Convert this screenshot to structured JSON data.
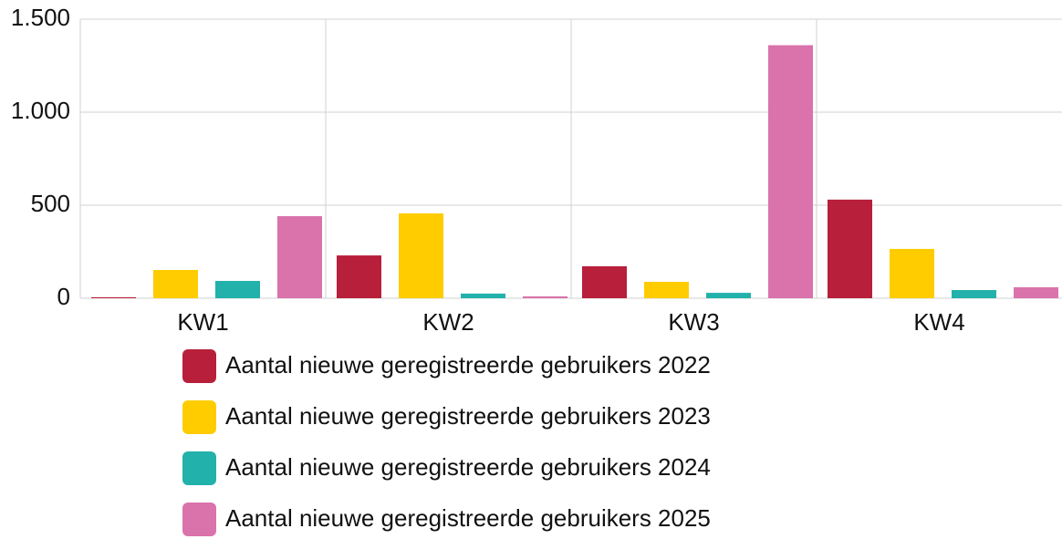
{
  "chart_data": {
    "type": "bar",
    "categories": [
      "KW1",
      "KW2",
      "KW3",
      "KW4"
    ],
    "series": [
      {
        "name": "Aantal nieuwe geregistreerde gebruikers 2022",
        "color": "#b81f3b",
        "values": [
          5,
          230,
          172,
          530
        ]
      },
      {
        "name": "Aantal nieuwe geregistreerde gebruikers 2023",
        "color": "#ffcc00",
        "values": [
          152,
          456,
          88,
          265
        ]
      },
      {
        "name": "Aantal nieuwe geregistreerde gebruikers 2024",
        "color": "#22b1ab",
        "values": [
          93,
          25,
          29,
          44
        ]
      },
      {
        "name": "Aantal nieuwe geregistreerde gebruikers 2025",
        "color": "#da72ab",
        "values": [
          441,
          10,
          1360,
          59
        ]
      }
    ],
    "ylim": [
      0,
      1500
    ],
    "yticks": [
      0,
      500,
      {
        "value": 1000,
        "label": "1.000"
      },
      {
        "value": 1500,
        "label": "1.500"
      }
    ],
    "grid": true
  }
}
